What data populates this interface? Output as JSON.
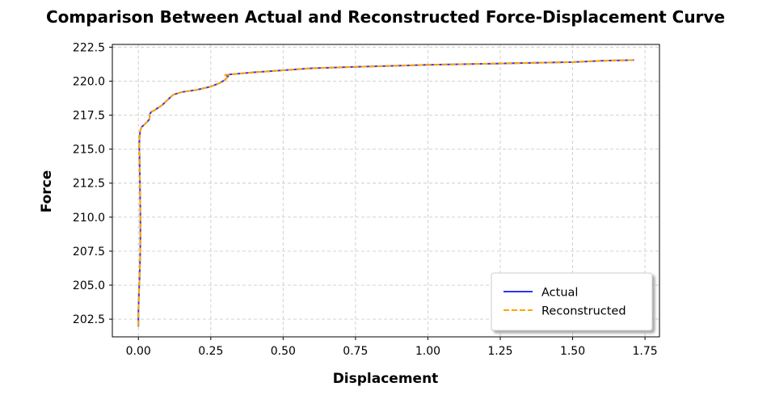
{
  "chart_data": {
    "type": "line",
    "title": "Comparison Between Actual and Reconstructed Force-Displacement Curve",
    "xlabel": "Displacement",
    "ylabel": "Force",
    "xlim": [
      -0.09,
      1.8
    ],
    "ylim": [
      201.2,
      222.7
    ],
    "xticks": [
      0.0,
      0.25,
      0.5,
      0.75,
      1.0,
      1.25,
      1.5,
      1.75
    ],
    "xtick_labels": [
      "0.00",
      "0.25",
      "0.50",
      "0.75",
      "1.00",
      "1.25",
      "1.50",
      "1.75"
    ],
    "yticks": [
      202.5,
      205.0,
      207.5,
      210.0,
      212.5,
      215.0,
      217.5,
      220.0,
      222.5
    ],
    "ytick_labels": [
      "202.5",
      "205.0",
      "207.5",
      "210.0",
      "212.5",
      "215.0",
      "217.5",
      "220.0",
      "222.5"
    ],
    "grid": true,
    "legend_position": "lower-right",
    "series": [
      {
        "name": "Actual",
        "color": "#3333ee",
        "style": "solid",
        "x": [
          0.0,
          0.0,
          0.002,
          0.004,
          0.006,
          0.007,
          0.007,
          0.006,
          0.005,
          0.004,
          0.003,
          0.004,
          0.006,
          0.01,
          0.015,
          0.02,
          0.03,
          0.038,
          0.04,
          0.045,
          0.055,
          0.065,
          0.08,
          0.1,
          0.12,
          0.15,
          0.2,
          0.25,
          0.28,
          0.3,
          0.31,
          0.3,
          0.32,
          0.4,
          0.5,
          0.6,
          0.75,
          1.0,
          1.25,
          1.5,
          1.6,
          1.71
        ],
        "y": [
          202.0,
          203.0,
          204.5,
          205.5,
          207.0,
          208.5,
          210.0,
          211.5,
          213.0,
          214.5,
          215.2,
          215.9,
          216.3,
          216.6,
          216.7,
          216.8,
          217.0,
          217.2,
          217.6,
          217.75,
          217.85,
          218.0,
          218.2,
          218.6,
          219.0,
          219.2,
          219.35,
          219.6,
          219.85,
          220.1,
          220.35,
          220.45,
          220.5,
          220.65,
          220.8,
          220.95,
          221.05,
          221.2,
          221.3,
          221.4,
          221.5,
          221.55
        ]
      },
      {
        "name": "Reconstructed",
        "color": "#ffa500",
        "style": "dashed",
        "x": [
          0.0,
          0.0,
          0.002,
          0.004,
          0.006,
          0.007,
          0.007,
          0.006,
          0.005,
          0.004,
          0.003,
          0.004,
          0.006,
          0.01,
          0.015,
          0.02,
          0.03,
          0.038,
          0.04,
          0.045,
          0.055,
          0.065,
          0.08,
          0.1,
          0.12,
          0.15,
          0.2,
          0.25,
          0.28,
          0.3,
          0.31,
          0.3,
          0.32,
          0.4,
          0.5,
          0.6,
          0.75,
          1.0,
          1.25,
          1.5,
          1.6,
          1.71
        ],
        "y": [
          202.0,
          203.0,
          204.5,
          205.5,
          207.0,
          208.5,
          210.0,
          211.5,
          213.0,
          214.5,
          215.2,
          215.9,
          216.3,
          216.6,
          216.7,
          216.8,
          217.0,
          217.2,
          217.6,
          217.75,
          217.85,
          218.0,
          218.2,
          218.6,
          219.0,
          219.2,
          219.35,
          219.6,
          219.85,
          220.1,
          220.35,
          220.45,
          220.5,
          220.65,
          220.8,
          220.95,
          221.05,
          221.2,
          221.3,
          221.4,
          221.5,
          221.55
        ]
      }
    ]
  }
}
